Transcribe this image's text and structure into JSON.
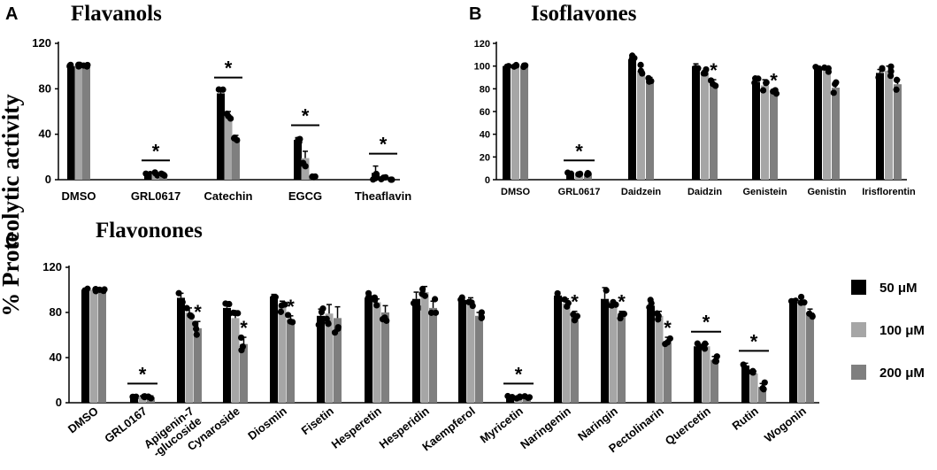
{
  "y_axis_label": "% Proteolytic activity",
  "colors": {
    "c50": "#000000",
    "c100": "#a6a6a6",
    "c200": "#7f7f7f",
    "dot": "#000000"
  },
  "legend": {
    "entries": [
      {
        "label": "50 μM",
        "color": "#000000"
      },
      {
        "label": "100 μM",
        "color": "#a6a6a6"
      },
      {
        "label": "200 μM",
        "color": "#7f7f7f"
      }
    ]
  },
  "chart_data": [
    {
      "panel": "A",
      "type": "bar",
      "title": "Flavanols",
      "ylim": [
        0,
        120
      ],
      "yticks": [
        "0",
        "40",
        "80",
        "120"
      ],
      "categories": [
        "DMSO",
        "GRL0617",
        "Catechin",
        "EGCG",
        "Theaflavin"
      ],
      "series": [
        {
          "name": "50 μM",
          "values": [
            100,
            5,
            76,
            35,
            6
          ]
        },
        {
          "name": "100 μM",
          "values": [
            100,
            5,
            57,
            19,
            1
          ]
        },
        {
          "name": "200 μM",
          "values": [
            100,
            5,
            37,
            3,
            0
          ]
        }
      ],
      "errors": [
        [
          0,
          1,
          3,
          2,
          6
        ],
        [
          0,
          1,
          3,
          6,
          1
        ],
        [
          0,
          1,
          2,
          1,
          0
        ]
      ],
      "significance": [
        {
          "category": "GRL0617",
          "marker": "*"
        },
        {
          "category": "Catechin",
          "marker": "*"
        },
        {
          "category": "EGCG",
          "marker": "*"
        },
        {
          "category": "Theaflavin",
          "marker": "*"
        }
      ]
    },
    {
      "panel": "B",
      "type": "bar",
      "title": "Isoflavones",
      "ylim": [
        0,
        120
      ],
      "yticks": [
        "0",
        "20",
        "40",
        "60",
        "80",
        "100",
        "120"
      ],
      "categories": [
        "DMSO",
        "GRL0617",
        "Daidzein",
        "Daidzin",
        "Genistein",
        "Genistin",
        "Irisflorentin"
      ],
      "series": [
        {
          "name": "50 μM",
          "values": [
            100,
            5,
            106,
            100,
            86,
            98,
            94
          ]
        },
        {
          "name": "100 μM",
          "values": [
            100,
            5,
            96,
            93,
            83,
            96,
            96
          ]
        },
        {
          "name": "200 μM",
          "values": [
            100,
            5,
            87,
            84,
            77,
            81,
            84
          ]
        }
      ],
      "errors": [
        [
          0,
          1,
          3,
          2,
          4,
          2,
          3
        ],
        [
          0,
          1,
          4,
          3,
          5,
          3,
          4
        ],
        [
          0,
          1,
          3,
          4,
          2,
          5,
          4
        ]
      ],
      "significance": [
        {
          "category": "GRL0617",
          "marker": "*"
        },
        {
          "category": "Daidzin",
          "marker": "*",
          "series": "200 μM"
        },
        {
          "category": "Genistein",
          "marker": "*",
          "series": "200 μM"
        }
      ]
    },
    {
      "panel": "C",
      "type": "bar",
      "title": "Flavonones",
      "ylim": [
        0,
        120
      ],
      "yticks": [
        "0",
        "40",
        "80",
        "120"
      ],
      "categories": [
        "DMSO",
        "GRL0167",
        "Apigenin-7\n-glucoside",
        "Cynaroside",
        "Diosmin",
        "Fisetin",
        "Hesperetin",
        "Hesperidin",
        "Kaempferol",
        "Myricetin",
        "Naringenin",
        "Naringin",
        "Pectolinarin",
        "Quercetin",
        "Rutin",
        "Wogonin"
      ],
      "series": [
        {
          "name": "50 μM",
          "values": [
            100,
            5,
            93,
            84,
            94,
            77,
            93,
            92,
            91,
            5,
            95,
            92,
            86,
            50,
            33,
            90
          ]
        },
        {
          "name": "100 μM",
          "values": [
            100,
            5,
            80,
            75,
            86,
            79,
            89,
            98,
            90,
            5,
            88,
            86,
            77,
            50,
            26,
            90
          ]
        },
        {
          "name": "200 μM",
          "values": [
            100,
            5,
            66,
            52,
            74,
            75,
            80,
            84,
            77,
            5,
            76,
            77,
            54,
            38,
            14,
            80
          ]
        }
      ],
      "errors": [
        [
          0,
          1,
          4,
          5,
          2,
          6,
          3,
          6,
          2,
          1,
          3,
          10,
          5,
          2,
          2,
          2
        ],
        [
          0,
          1,
          4,
          4,
          4,
          8,
          3,
          5,
          3,
          1,
          4,
          3,
          4,
          2,
          2,
          3
        ],
        [
          0,
          1,
          6,
          6,
          3,
          10,
          6,
          6,
          3,
          1,
          5,
          4,
          4,
          3,
          3,
          3
        ]
      ],
      "significance": [
        {
          "category": "GRL0167",
          "marker": "*"
        },
        {
          "category": "Apigenin-7\n-glucoside",
          "marker": "*",
          "series": "200 μM"
        },
        {
          "category": "Cynaroside",
          "marker": "*",
          "series": "200 μM"
        },
        {
          "category": "Diosmin",
          "marker": "*",
          "series": "200 μM"
        },
        {
          "category": "Myricetin",
          "marker": "*"
        },
        {
          "category": "Naringenin",
          "marker": "*",
          "series": "200 μM"
        },
        {
          "category": "Naringin",
          "marker": "*",
          "series": "200 μM"
        },
        {
          "category": "Pectolinarin",
          "marker": "*",
          "series": "200 μM"
        },
        {
          "category": "Quercetin",
          "marker": "*"
        },
        {
          "category": "Rutin",
          "marker": "*"
        }
      ]
    }
  ]
}
